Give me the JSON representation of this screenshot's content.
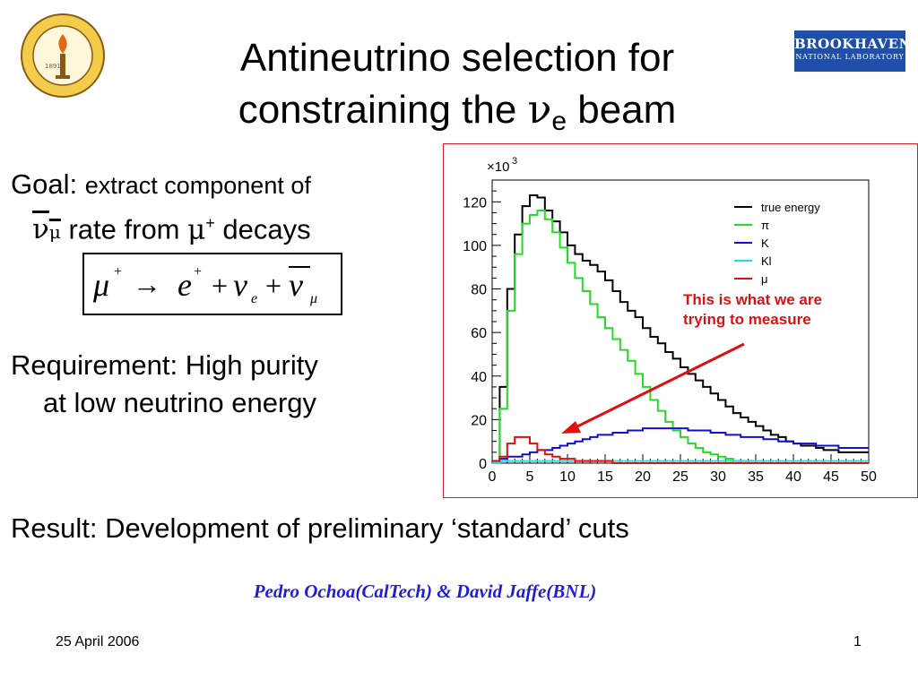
{
  "slide": {
    "title_line1": "Antineutrino selection for",
    "title_line2_prefix": "constraining the ",
    "title_nu": "ν",
    "title_nu_sub": "e",
    "title_line2_suffix": " beam",
    "goal_line1_a": "Goal: ",
    "goal_line1_b": "extract component of",
    "goal_nu": "ν",
    "goal_nu_sub": "μ",
    "goal_line2_mid": " rate from ",
    "goal_mu": "μ",
    "goal_mu_sup": "+",
    "goal_line2_end": " decays",
    "equation": {
      "mu": "μ",
      "mu_sup": "+",
      "arrow": "→",
      "e": "e",
      "e_sup": "+",
      "plus": "+",
      "nu": "ν",
      "nu_e_sub": "e",
      "nu_mu_sub": "μ"
    },
    "requirement_line1": "Requirement: High purity",
    "requirement_line2": "at low neutrino energy",
    "result": "Result: Development of  preliminary ‘standard’ cuts",
    "authors": "Pedro Ochoa(CalTech) & David Jaffe(BNL)",
    "date": "25 April 2006",
    "page_number": "1",
    "logos": {
      "caltech_seal_year": "1891",
      "bnl_line1": "BROOKHAVEN",
      "bnl_line2": "NATIONAL LABORATORY"
    },
    "annotation_line1": "This is what we are",
    "annotation_line2": "trying to measure"
  },
  "chart_data": {
    "type": "line",
    "title": "",
    "xlabel": "",
    "ylabel": "",
    "y_multiplier_label": "×10",
    "y_multiplier_exp": "3",
    "xlim": [
      0,
      50
    ],
    "ylim": [
      0,
      130
    ],
    "x_ticks": [
      0,
      5,
      10,
      15,
      20,
      25,
      30,
      35,
      40,
      45,
      50
    ],
    "y_ticks": [
      0,
      20,
      40,
      60,
      80,
      100,
      120
    ],
    "bin_width": 1,
    "legend_position": "top-right",
    "series": [
      {
        "name": "true energy",
        "color": "#000000",
        "values": [
          0,
          35,
          80,
          105,
          118,
          123,
          122,
          116,
          111,
          106,
          100,
          96,
          93,
          91,
          88,
          84,
          79,
          74,
          70,
          67,
          62,
          58,
          55,
          51,
          48,
          44,
          41,
          38,
          35,
          32,
          29,
          26,
          23,
          21,
          19,
          17,
          15,
          13,
          12,
          10,
          9,
          8,
          8,
          7,
          6,
          6,
          5,
          5,
          5,
          5
        ]
      },
      {
        "name": "π",
        "color": "#22dd22",
        "values": [
          0,
          25,
          70,
          96,
          110,
          114,
          116,
          112,
          106,
          99,
          92,
          85,
          79,
          73,
          67,
          62,
          57,
          52,
          47,
          41,
          35,
          29,
          24,
          19,
          15,
          12,
          9,
          7,
          5,
          4,
          3,
          2,
          1,
          1,
          1,
          0,
          0,
          0,
          0,
          0,
          0,
          0,
          0,
          0,
          0,
          0,
          0,
          0,
          0,
          0
        ]
      },
      {
        "name": "K",
        "color": "#1010cc",
        "values": [
          1,
          2,
          3,
          3,
          4,
          5,
          6,
          6,
          7,
          8,
          9,
          10,
          11,
          12,
          13,
          13,
          14,
          14,
          15,
          15,
          16,
          16,
          16,
          16,
          16,
          16,
          15,
          15,
          15,
          14,
          14,
          13,
          13,
          12,
          12,
          12,
          11,
          11,
          10,
          10,
          9,
          9,
          9,
          8,
          8,
          8,
          7,
          7,
          7,
          7
        ]
      },
      {
        "name": "Kl",
        "color": "#22dddd",
        "values": [
          0,
          1,
          1,
          1,
          1,
          1,
          1,
          1,
          1,
          1,
          1,
          1,
          1,
          1,
          1,
          1,
          1,
          1,
          1,
          1,
          1,
          1,
          1,
          1,
          1,
          1,
          1,
          1,
          1,
          1,
          1,
          1,
          1,
          1,
          1,
          1,
          1,
          1,
          1,
          1,
          1,
          1,
          1,
          1,
          1,
          1,
          1,
          1,
          1,
          1
        ]
      },
      {
        "name": "μ",
        "color": "#dd1010",
        "values": [
          1,
          3,
          9,
          12,
          12,
          9,
          6,
          4,
          3,
          2,
          2,
          1,
          1,
          1,
          1,
          1,
          0,
          0,
          0,
          0,
          0,
          0,
          0,
          0,
          0,
          0,
          0,
          0,
          0,
          0,
          0,
          0,
          0,
          0,
          0,
          0,
          0,
          0,
          0,
          0,
          0,
          0,
          0,
          0,
          0,
          0,
          0,
          0,
          0,
          0
        ]
      }
    ]
  }
}
